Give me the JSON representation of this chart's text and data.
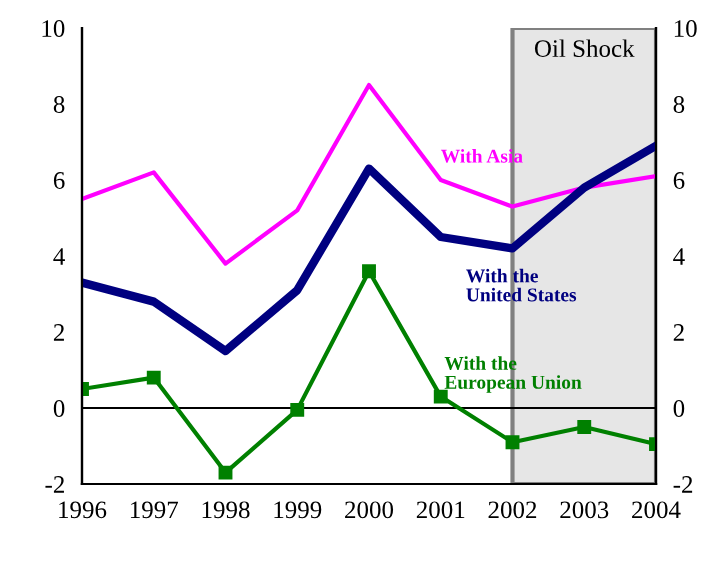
{
  "chart_data": {
    "type": "line",
    "x": [
      1996,
      1997,
      1998,
      1999,
      2000,
      2001,
      2002,
      2003,
      2004
    ],
    "series": [
      {
        "name": "With Asia",
        "color": "#ff00ff",
        "values": [
          5.5,
          6.2,
          3.8,
          5.2,
          8.5,
          6.0,
          5.3,
          5.8,
          6.1
        ]
      },
      {
        "name": "With the United States",
        "color": "#000080",
        "values": [
          3.3,
          2.8,
          1.5,
          3.1,
          6.3,
          4.5,
          4.2,
          5.8,
          6.9
        ]
      },
      {
        "name": "With the European Union",
        "color": "#008000",
        "marker": "square",
        "values": [
          0.5,
          0.8,
          -1.7,
          -0.05,
          3.6,
          0.3,
          -0.9,
          -0.5,
          -0.95
        ]
      }
    ],
    "xlim": [
      1996,
      2004
    ],
    "xticks": [
      1996,
      1997,
      1998,
      1999,
      2000,
      2001,
      2002,
      2003,
      2004
    ],
    "ylim": [
      -2,
      10
    ],
    "yticks": [
      -2,
      0,
      2,
      4,
      6,
      8,
      10
    ],
    "y2lim": [
      -2,
      10
    ],
    "y2ticks": [
      -2,
      0,
      2,
      4,
      6,
      8,
      10
    ],
    "ref_lines": [
      {
        "axis": "y",
        "value": 0,
        "color": "#000000"
      }
    ],
    "bands": [
      {
        "axis": "x",
        "from": 2002,
        "to": 2004,
        "label": "Oil Shock",
        "color": "#e6e6e6"
      }
    ],
    "grid": false,
    "legend": false
  }
}
